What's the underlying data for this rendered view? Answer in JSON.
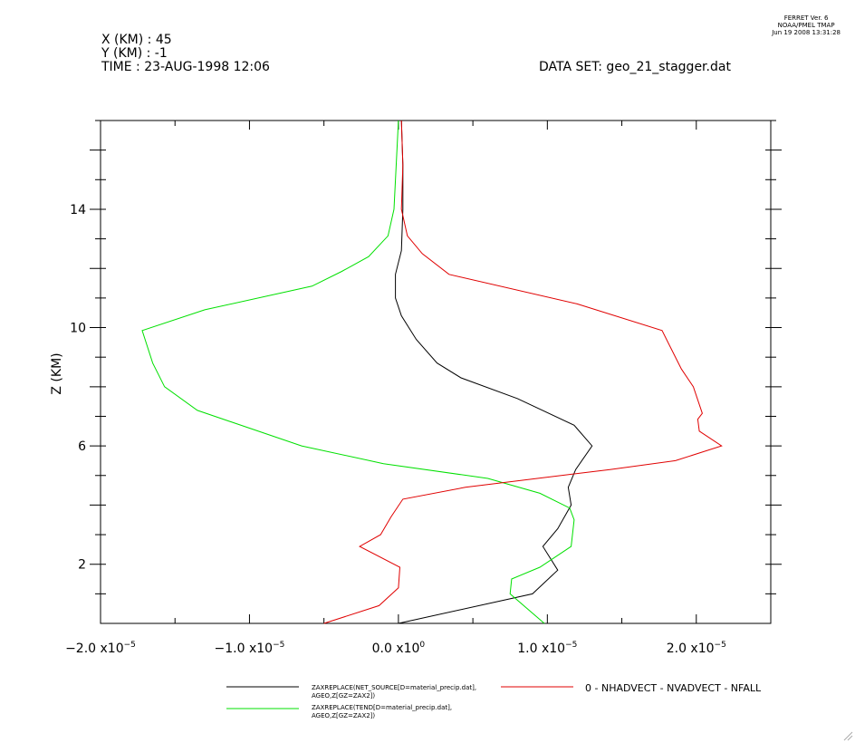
{
  "header": {
    "x_line": "X (KM) : 45",
    "y_line": "Y (KM) : -1",
    "time_line": "TIME : 23-AUG-1998 12:06",
    "dataset_line": "DATA SET: geo_21_stagger.dat"
  },
  "stamp": {
    "line1": "FERRET Ver. 6",
    "line2": "NOAA/PMEL TMAP",
    "line3": "Jun 19 2008 13:31:28"
  },
  "chart_data": {
    "type": "line",
    "title": "",
    "xlabel": "",
    "ylabel": "Z (KM)",
    "xlim": [
      -2e-05,
      2.5e-05
    ],
    "ylim": [
      0,
      17
    ],
    "x_ticks": [
      {
        "value": -2e-05,
        "label_base": "−2.0 x10",
        "label_exp": "−5"
      },
      {
        "value": -1e-05,
        "label_base": "−1.0 x10",
        "label_exp": "−5"
      },
      {
        "value": 0.0,
        "label_base": "0.0 x10",
        "label_exp": "0"
      },
      {
        "value": 1e-05,
        "label_base": "1.0 x10",
        "label_exp": "−5"
      },
      {
        "value": 2e-05,
        "label_base": "2.0 x10",
        "label_exp": "−5"
      }
    ],
    "y_ticks": [
      2,
      6,
      10,
      14
    ],
    "grid": false,
    "series": [
      {
        "name": "ZAXREPLACE(NET_SOURCE[D=material_precip.dat],",
        "name_line2": "AGEO,Z[GZ=ZAX2])",
        "color": "#000000",
        "points": [
          [
            0.0,
            0.0
          ],
          [
            9e-06,
            1.0
          ],
          [
            1.07e-05,
            1.8
          ],
          [
            9.7e-06,
            2.6
          ],
          [
            1.07e-05,
            3.2
          ],
          [
            1.16e-05,
            4.0
          ],
          [
            1.14e-05,
            4.6
          ],
          [
            1.19e-05,
            5.2
          ],
          [
            1.3e-05,
            6.0
          ],
          [
            1.18e-05,
            6.7
          ],
          [
            8e-06,
            7.6
          ],
          [
            4.2e-06,
            8.3
          ],
          [
            2.6e-06,
            8.8
          ],
          [
            1.2e-06,
            9.6
          ],
          [
            2e-07,
            10.4
          ],
          [
            -2e-07,
            11.0
          ],
          [
            -2e-07,
            11.8
          ],
          [
            2e-07,
            12.6
          ],
          [
            3e-07,
            14.0
          ],
          [
            3e-07,
            15.5
          ],
          [
            2e-07,
            17.0
          ]
        ]
      },
      {
        "name": "ZAXREPLACE(TEND[D=material_precip.dat],",
        "name_line2": "AGEO,Z[GZ=ZAX2])",
        "color": "#00e000",
        "points": [
          [
            9.8e-06,
            0.0
          ],
          [
            7.5e-06,
            1.0
          ],
          [
            7.6e-06,
            1.5
          ],
          [
            9.5e-06,
            1.9
          ],
          [
            1.16e-05,
            2.6
          ],
          [
            1.18e-05,
            3.5
          ],
          [
            1.15e-05,
            3.9
          ],
          [
            9.5e-06,
            4.4
          ],
          [
            6e-06,
            4.9
          ],
          [
            -1e-06,
            5.4
          ],
          [
            -6.5e-06,
            6.0
          ],
          [
            -1.35e-05,
            7.2
          ],
          [
            -1.57e-05,
            8.0
          ],
          [
            -1.65e-05,
            8.8
          ],
          [
            -1.72e-05,
            9.9
          ],
          [
            -1.3e-05,
            10.6
          ],
          [
            -5.8e-06,
            11.4
          ],
          [
            -3.8e-06,
            11.9
          ],
          [
            -2e-06,
            12.4
          ],
          [
            -7e-07,
            13.1
          ],
          [
            -3e-07,
            14.0
          ],
          [
            0.0,
            17.0
          ]
        ]
      },
      {
        "name": "0 - NHADVECT - NVADVECT - NFALL",
        "color": "#e00000",
        "points": [
          [
            -5e-06,
            0.0
          ],
          [
            -1.3e-06,
            0.6
          ],
          [
            0.0,
            1.2
          ],
          [
            1e-07,
            1.9
          ],
          [
            -2.6e-06,
            2.6
          ],
          [
            -1.2e-06,
            3.0
          ],
          [
            -5e-07,
            3.6
          ],
          [
            3e-07,
            4.2
          ],
          [
            4.5e-06,
            4.6
          ],
          [
            1.42e-05,
            5.2
          ],
          [
            1.86e-05,
            5.5
          ],
          [
            2.17e-05,
            6.0
          ],
          [
            2.02e-05,
            6.5
          ],
          [
            2.01e-05,
            6.9
          ],
          [
            2.04e-05,
            7.1
          ],
          [
            1.98e-05,
            8.0
          ],
          [
            1.9e-05,
            8.6
          ],
          [
            1.83e-05,
            9.3
          ],
          [
            1.77e-05,
            9.9
          ],
          [
            1.2e-05,
            10.8
          ],
          [
            3.4e-06,
            11.8
          ],
          [
            1.6e-06,
            12.5
          ],
          [
            6e-07,
            13.1
          ],
          [
            2e-07,
            14.0
          ],
          [
            3e-07,
            15.5
          ],
          [
            2e-07,
            17.0
          ]
        ]
      }
    ]
  }
}
